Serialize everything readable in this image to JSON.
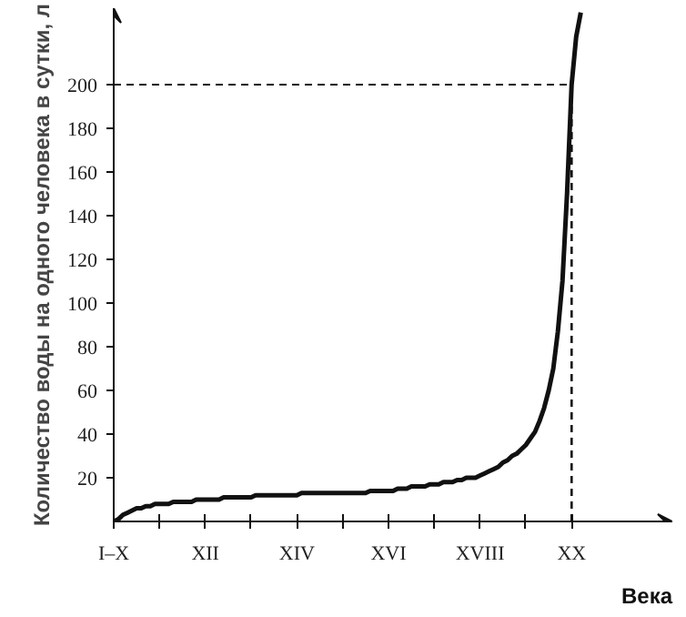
{
  "chart_data": {
    "type": "line",
    "xlabel": "Века",
    "ylabel": "Количество воды на одного человека в сутки, л",
    "categories": [
      "I–X",
      null,
      null,
      null,
      null,
      null,
      null,
      null,
      null,
      null,
      null,
      null,
      null,
      null,
      null,
      null,
      null,
      null,
      null,
      null,
      "XII",
      null,
      null,
      null,
      null,
      null,
      null,
      null,
      null,
      null,
      null,
      null,
      null,
      null,
      null,
      null,
      null,
      null,
      null,
      null,
      "XIV",
      null,
      null,
      null,
      null,
      null,
      null,
      null,
      null,
      null,
      null,
      null,
      null,
      null,
      null,
      null,
      null,
      null,
      null,
      null,
      "XVI",
      null,
      null,
      null,
      null,
      null,
      null,
      null,
      null,
      null,
      null,
      null,
      null,
      null,
      null,
      null,
      null,
      null,
      null,
      null,
      "XVIII",
      null,
      null,
      null,
      null,
      null,
      null,
      null,
      null,
      null,
      null,
      null,
      null,
      null,
      null,
      null,
      null,
      null,
      null,
      null,
      "XX",
      null,
      null,
      null,
      null,
      null,
      null,
      null,
      null,
      null,
      null,
      null,
      null,
      null,
      null,
      null,
      null,
      null,
      null,
      null,
      null,
      null,
      null
    ],
    "series": [
      {
        "color": "#111111",
        "values": [
          0,
          1,
          3,
          4,
          5,
          6,
          6,
          7,
          7,
          8,
          8,
          8,
          8,
          9,
          9,
          9,
          9,
          9,
          10,
          10,
          10,
          10,
          10,
          10,
          11,
          11,
          11,
          11,
          11,
          11,
          11,
          12,
          12,
          12,
          12,
          12,
          12,
          12,
          12,
          12,
          12,
          13,
          13,
          13,
          13,
          13,
          13,
          13,
          13,
          13,
          13,
          13,
          13,
          13,
          13,
          13,
          14,
          14,
          14,
          14,
          14,
          14,
          15,
          15,
          15,
          16,
          16,
          16,
          16,
          17,
          17,
          17,
          18,
          18,
          18,
          19,
          19,
          20,
          20,
          20,
          21,
          22,
          23,
          24,
          25,
          27,
          28,
          30,
          31,
          33,
          35,
          38,
          41,
          46,
          52,
          60,
          70,
          87,
          110,
          150,
          200,
          222,
          233,
          null,
          null,
          null,
          null,
          null,
          null,
          null,
          null,
          null,
          null,
          null,
          null,
          null,
          null,
          null,
          null,
          null,
          null,
          null,
          null
        ]
      }
    ],
    "ylim": [
      0,
      235
    ],
    "yticks": [
      20,
      40,
      60,
      80,
      100,
      120,
      140,
      160,
      180,
      200
    ],
    "ref_lines": [
      {
        "axis": "y",
        "value": 200,
        "line_style": "dashed"
      },
      {
        "axis": "x",
        "value": "XX",
        "line_style": "dashed"
      }
    ],
    "marker": "none",
    "line_style": "solid"
  }
}
